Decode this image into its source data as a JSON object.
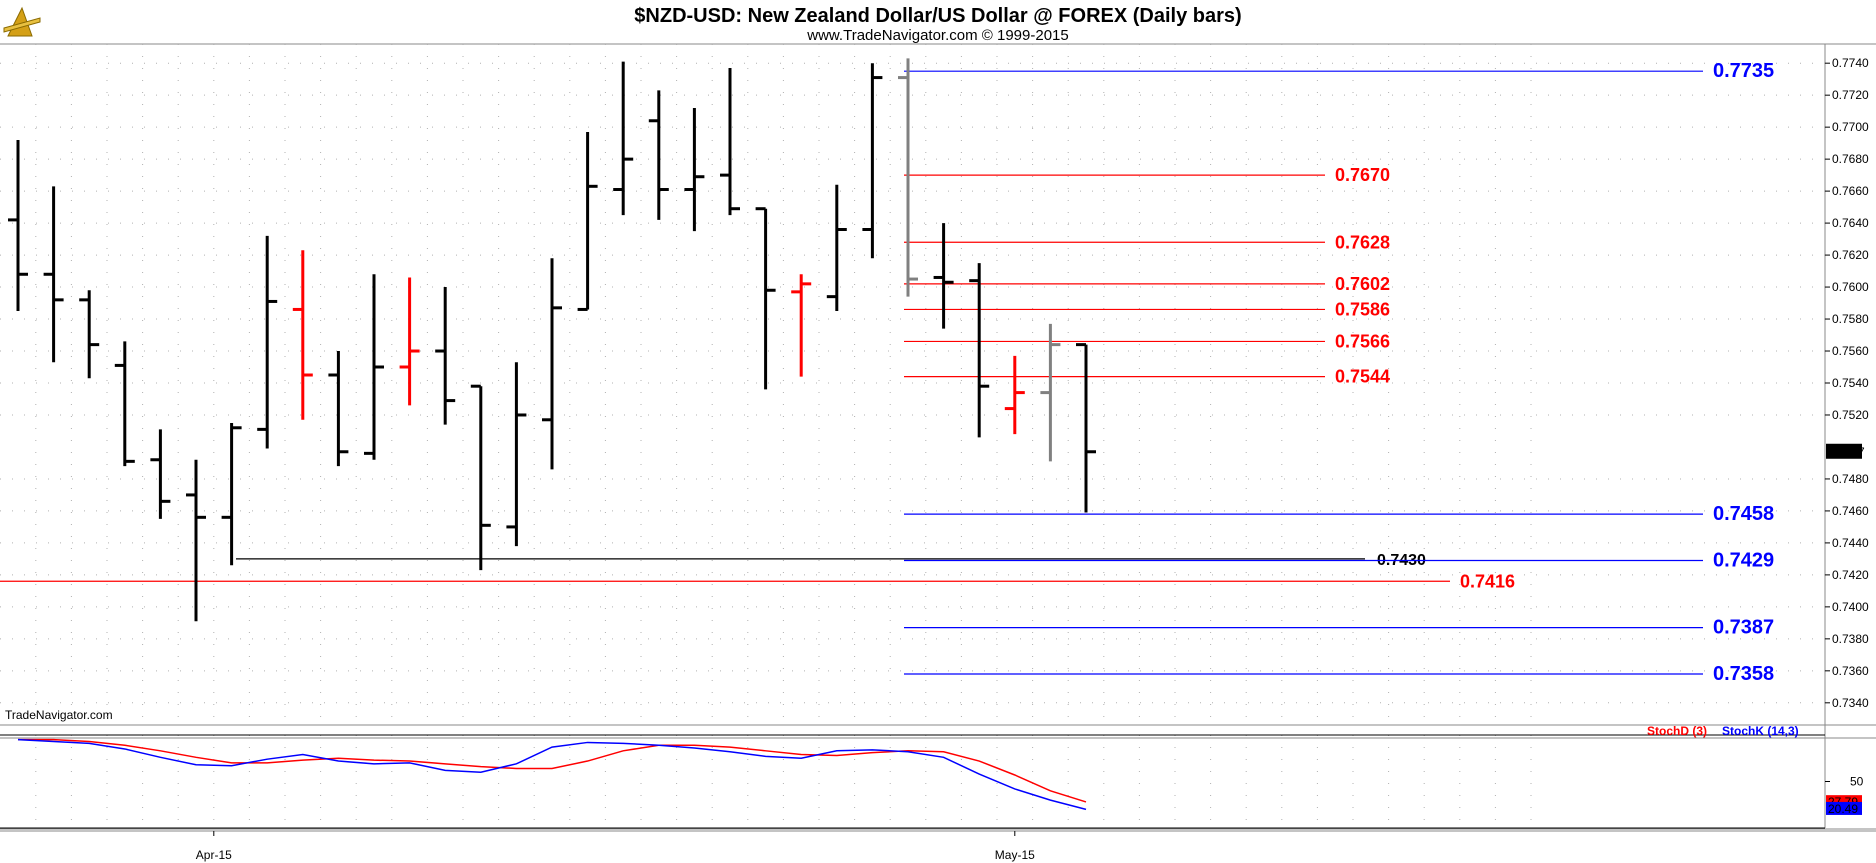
{
  "header": {
    "title": "$NZD-USD:  New Zealand Dollar/US Dollar @ FOREX  (Daily bars)",
    "subtitle": "www.TradeNavigator.com © 1999-2015",
    "watermark": "TradeNavigator.com"
  },
  "colors": {
    "up": "#000000",
    "down": "#000000",
    "red": "#ff0000",
    "blue": "#0000ff",
    "gray": "#808080",
    "grid": "#b0b0b0"
  },
  "chart_data": [
    {
      "type": "ohlc",
      "title": "$NZD-USD:  New Zealand Dollar/US Dollar @ FOREX  (Daily bars)",
      "ylim": [
        0.7328,
        0.7752
      ],
      "y_ticks": [
        "0.7740",
        "0.7720",
        "0.7700",
        "0.7680",
        "0.7660",
        "0.7640",
        "0.7620",
        "0.7600",
        "0.7580",
        "0.7560",
        "0.7540",
        "0.7520",
        "0.7480",
        "0.7460",
        "0.7440",
        "0.7420",
        "0.7400",
        "0.7380",
        "0.7360",
        "0.7340"
      ],
      "x_labels": [
        {
          "label": "Apr-15",
          "bar": 5.5
        },
        {
          "label": "May-15",
          "bar": 28
        }
      ],
      "last_price": "0.7497",
      "bars": [
        {
          "o": 0.7642,
          "h": 0.7692,
          "l": 0.7585,
          "c": 0.7608,
          "color": "black"
        },
        {
          "o": 0.7608,
          "h": 0.7663,
          "l": 0.7553,
          "c": 0.7592,
          "color": "black"
        },
        {
          "o": 0.7592,
          "h": 0.7598,
          "l": 0.7543,
          "c": 0.7564,
          "color": "black"
        },
        {
          "o": 0.7551,
          "h": 0.7566,
          "l": 0.7488,
          "c": 0.7491,
          "color": "black"
        },
        {
          "o": 0.7492,
          "h": 0.7511,
          "l": 0.7455,
          "c": 0.7466,
          "color": "black"
        },
        {
          "o": 0.747,
          "h": 0.7492,
          "l": 0.7391,
          "c": 0.7456,
          "color": "black"
        },
        {
          "o": 0.7456,
          "h": 0.7515,
          "l": 0.7426,
          "c": 0.7512,
          "color": "black"
        },
        {
          "o": 0.7511,
          "h": 0.7632,
          "l": 0.7499,
          "c": 0.7591,
          "color": "black"
        },
        {
          "o": 0.7586,
          "h": 0.7623,
          "l": 0.7517,
          "c": 0.7545,
          "color": "red"
        },
        {
          "o": 0.7545,
          "h": 0.756,
          "l": 0.7488,
          "c": 0.7497,
          "color": "black"
        },
        {
          "o": 0.7496,
          "h": 0.7608,
          "l": 0.7492,
          "c": 0.755,
          "color": "black"
        },
        {
          "o": 0.755,
          "h": 0.7606,
          "l": 0.7526,
          "c": 0.756,
          "color": "red"
        },
        {
          "o": 0.756,
          "h": 0.76,
          "l": 0.7514,
          "c": 0.7529,
          "color": "black"
        },
        {
          "o": 0.7538,
          "h": 0.7538,
          "l": 0.7423,
          "c": 0.7451,
          "color": "black"
        },
        {
          "o": 0.745,
          "h": 0.7553,
          "l": 0.7438,
          "c": 0.752,
          "color": "black"
        },
        {
          "o": 0.7517,
          "h": 0.7618,
          "l": 0.7486,
          "c": 0.7587,
          "color": "black"
        },
        {
          "o": 0.7586,
          "h": 0.7697,
          "l": 0.7586,
          "c": 0.7663,
          "color": "black"
        },
        {
          "o": 0.7661,
          "h": 0.7741,
          "l": 0.7645,
          "c": 0.768,
          "color": "black"
        },
        {
          "o": 0.7704,
          "h": 0.7723,
          "l": 0.7642,
          "c": 0.7661,
          "color": "black"
        },
        {
          "o": 0.7661,
          "h": 0.7712,
          "l": 0.7635,
          "c": 0.7669,
          "color": "black"
        },
        {
          "o": 0.767,
          "h": 0.7737,
          "l": 0.7645,
          "c": 0.7649,
          "color": "black"
        },
        {
          "o": 0.7649,
          "h": 0.7649,
          "l": 0.7536,
          "c": 0.7598,
          "color": "black"
        },
        {
          "o": 0.7597,
          "h": 0.7608,
          "l": 0.7544,
          "c": 0.7602,
          "color": "red"
        },
        {
          "o": 0.7594,
          "h": 0.7664,
          "l": 0.7585,
          "c": 0.7636,
          "color": "black"
        },
        {
          "o": 0.7636,
          "h": 0.774,
          "l": 0.7618,
          "c": 0.7731,
          "color": "black"
        },
        {
          "o": 0.7731,
          "h": 0.7743,
          "l": 0.7594,
          "c": 0.7605,
          "color": "gray"
        },
        {
          "o": 0.7606,
          "h": 0.764,
          "l": 0.7574,
          "c": 0.7603,
          "color": "black"
        },
        {
          "o": 0.7604,
          "h": 0.7615,
          "l": 0.7506,
          "c": 0.7538,
          "color": "black"
        },
        {
          "o": 0.7524,
          "h": 0.7557,
          "l": 0.7508,
          "c": 0.7534,
          "color": "red"
        },
        {
          "o": 0.7534,
          "h": 0.7577,
          "l": 0.7491,
          "c": 0.7564,
          "color": "gray"
        },
        {
          "o": 0.7564,
          "h": 0.7564,
          "l": 0.7459,
          "c": 0.7497,
          "color": "black"
        }
      ],
      "levels": [
        {
          "label": "0.7735",
          "value": 0.7735,
          "color": "blue",
          "from_bar": 25,
          "style": "blue"
        },
        {
          "label": "0.7670",
          "value": 0.767,
          "color": "red",
          "from_bar": 25,
          "style": "red"
        },
        {
          "label": "0.7628",
          "value": 0.7628,
          "color": "red",
          "from_bar": 25,
          "style": "red"
        },
        {
          "label": "0.7602",
          "value": 0.7602,
          "color": "red",
          "from_bar": 25,
          "style": "red"
        },
        {
          "label": "0.7586",
          "value": 0.7586,
          "color": "red",
          "from_bar": 25,
          "style": "red"
        },
        {
          "label": "0.7566",
          "value": 0.7566,
          "color": "red",
          "from_bar": 25,
          "style": "red"
        },
        {
          "label": "0.7544",
          "value": 0.7544,
          "color": "red",
          "from_bar": 25,
          "style": "red"
        },
        {
          "label": "0.7458",
          "value": 0.7458,
          "color": "blue",
          "from_bar": 25,
          "style": "blue"
        },
        {
          "label": "0.7430",
          "value": 0.743,
          "color": "black",
          "from_bar": 5,
          "style": "black"
        },
        {
          "label": "0.7429",
          "value": 0.7429,
          "color": "blue",
          "from_bar": 25,
          "style": "blue"
        },
        {
          "label": "0.7416",
          "value": 0.7416,
          "color": "red",
          "from_bar": 0,
          "style": "red-full"
        },
        {
          "label": "0.7387",
          "value": 0.7387,
          "color": "blue",
          "from_bar": 25,
          "style": "blue"
        },
        {
          "label": "0.7358",
          "value": 0.7358,
          "color": "blue",
          "from_bar": 25,
          "style": "blue"
        }
      ]
    },
    {
      "type": "line",
      "title": "",
      "legend": [
        "StochD (3)",
        "StochK (14,3)"
      ],
      "ylim": [
        0,
        100
      ],
      "y_ticks": [
        "50"
      ],
      "readouts": [
        "27.79",
        "20.49"
      ],
      "series": [
        {
          "name": "StochD (3)",
          "color": "red",
          "values": [
            95,
            95,
            93,
            89,
            83,
            76,
            70,
            70,
            73,
            75,
            73,
            72,
            69,
            66,
            64,
            64,
            72,
            83,
            89,
            89,
            87,
            83,
            79,
            78,
            81,
            83,
            82,
            72,
            57,
            40,
            28
          ]
        },
        {
          "name": "StochK (14,3)",
          "color": "blue",
          "values": [
            95,
            93,
            91,
            85,
            76,
            68,
            67,
            74,
            79,
            72,
            69,
            70,
            62,
            60,
            69,
            87,
            92,
            91,
            89,
            86,
            82,
            77,
            75,
            83,
            84,
            82,
            76,
            58,
            42,
            30,
            20
          ]
        }
      ]
    }
  ]
}
